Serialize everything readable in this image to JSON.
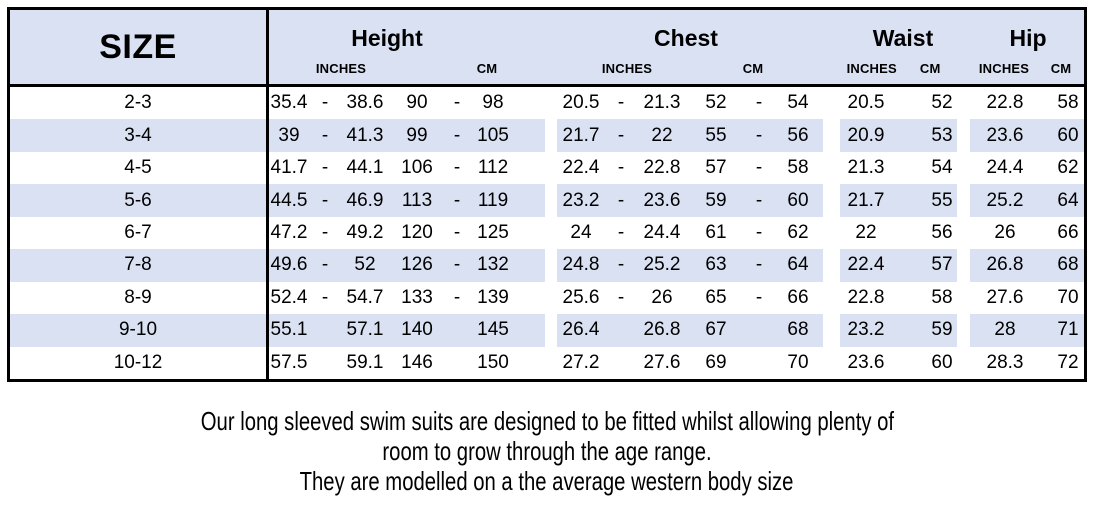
{
  "table": {
    "size_header": "SIZE",
    "groups": [
      {
        "label": "Height",
        "inches_label": "INCHES",
        "cm_label": "CM"
      },
      {
        "label": "Chest",
        "inches_label": "INCHES",
        "cm_label": "CM"
      },
      {
        "label": "Waist",
        "inches_label": "INCHES",
        "cm_label": "CM"
      },
      {
        "label": "Hip",
        "inches_label": "INCHES",
        "cm_label": "CM"
      }
    ],
    "rows": [
      {
        "size": "2-3",
        "height": [
          "35.4",
          "-",
          "38.6",
          "90",
          "-",
          "98"
        ],
        "chest": [
          "20.5",
          "-",
          "21.3",
          "52",
          "-",
          "54"
        ],
        "waist": [
          "20.5",
          "52"
        ],
        "hip": [
          "22.8",
          "58"
        ]
      },
      {
        "size": "3-4",
        "height": [
          "39",
          "-",
          "41.3",
          "99",
          "-",
          "105"
        ],
        "chest": [
          "21.7",
          "-",
          "22",
          "55",
          "-",
          "56"
        ],
        "waist": [
          "20.9",
          "53"
        ],
        "hip": [
          "23.6",
          "60"
        ]
      },
      {
        "size": "4-5",
        "height": [
          "41.7",
          "-",
          "44.1",
          "106",
          "-",
          "112"
        ],
        "chest": [
          "22.4",
          "-",
          "22.8",
          "57",
          "-",
          "58"
        ],
        "waist": [
          "21.3",
          "54"
        ],
        "hip": [
          "24.4",
          "62"
        ]
      },
      {
        "size": "5-6",
        "height": [
          "44.5",
          "-",
          "46.9",
          "113",
          "-",
          "119"
        ],
        "chest": [
          "23.2",
          "-",
          "23.6",
          "59",
          "-",
          "60"
        ],
        "waist": [
          "21.7",
          "55"
        ],
        "hip": [
          "25.2",
          "64"
        ]
      },
      {
        "size": "6-7",
        "height": [
          "47.2",
          "-",
          "49.2",
          "120",
          "-",
          "125"
        ],
        "chest": [
          "24",
          "-",
          "24.4",
          "61",
          "-",
          "62"
        ],
        "waist": [
          "22",
          "56"
        ],
        "hip": [
          "26",
          "66"
        ]
      },
      {
        "size": "7-8",
        "height": [
          "49.6",
          "-",
          "52",
          "126",
          "-",
          "132"
        ],
        "chest": [
          "24.8",
          "-",
          "25.2",
          "63",
          "-",
          "64"
        ],
        "waist": [
          "22.4",
          "57"
        ],
        "hip": [
          "26.8",
          "68"
        ]
      },
      {
        "size": "8-9",
        "height": [
          "52.4",
          "-",
          "54.7",
          "133",
          "-",
          "139"
        ],
        "chest": [
          "25.6",
          "-",
          "26",
          "65",
          "-",
          "66"
        ],
        "waist": [
          "22.8",
          "58"
        ],
        "hip": [
          "27.6",
          "70"
        ]
      },
      {
        "size": "9-10",
        "height": [
          "55.1",
          "",
          "57.1",
          "140",
          "",
          "145"
        ],
        "chest": [
          "26.4",
          "",
          "26.8",
          "67",
          "",
          "68"
        ],
        "waist": [
          "23.2",
          "59"
        ],
        "hip": [
          "28",
          "71"
        ]
      },
      {
        "size": "10-12",
        "height": [
          "57.5",
          "",
          "59.1",
          "146",
          "",
          "150"
        ],
        "chest": [
          "27.2",
          "",
          "27.6",
          "69",
          "",
          "70"
        ],
        "waist": [
          "23.6",
          "60"
        ],
        "hip": [
          "28.3",
          "72"
        ]
      }
    ]
  },
  "footer": {
    "lines": [
      "Our long sleeved swim suits are designed to be fitted whilst allowing plenty of",
      "room to grow through the age range.",
      "They are modelled on a the average western body size"
    ]
  },
  "colors": {
    "stripe": "#d9e1f2",
    "border": "#000000",
    "text": "#000000",
    "background": "#ffffff"
  },
  "chart_data": {
    "type": "table",
    "title": "Long sleeved swim suit size chart",
    "column_groups": [
      "SIZE",
      "Height",
      "Chest",
      "Waist",
      "Hip"
    ],
    "units": [
      "INCHES",
      "CM"
    ],
    "rows": [
      {
        "size": "2-3",
        "height_in": [
          35.4,
          38.6
        ],
        "height_cm": [
          90,
          98
        ],
        "chest_in": [
          20.5,
          21.3
        ],
        "chest_cm": [
          52,
          54
        ],
        "waist_in": 20.5,
        "waist_cm": 52,
        "hip_in": 22.8,
        "hip_cm": 58
      },
      {
        "size": "3-4",
        "height_in": [
          39,
          41.3
        ],
        "height_cm": [
          99,
          105
        ],
        "chest_in": [
          21.7,
          22
        ],
        "chest_cm": [
          55,
          56
        ],
        "waist_in": 20.9,
        "waist_cm": 53,
        "hip_in": 23.6,
        "hip_cm": 60
      },
      {
        "size": "4-5",
        "height_in": [
          41.7,
          44.1
        ],
        "height_cm": [
          106,
          112
        ],
        "chest_in": [
          22.4,
          22.8
        ],
        "chest_cm": [
          57,
          58
        ],
        "waist_in": 21.3,
        "waist_cm": 54,
        "hip_in": 24.4,
        "hip_cm": 62
      },
      {
        "size": "5-6",
        "height_in": [
          44.5,
          46.9
        ],
        "height_cm": [
          113,
          119
        ],
        "chest_in": [
          23.2,
          23.6
        ],
        "chest_cm": [
          59,
          60
        ],
        "waist_in": 21.7,
        "waist_cm": 55,
        "hip_in": 25.2,
        "hip_cm": 64
      },
      {
        "size": "6-7",
        "height_in": [
          47.2,
          49.2
        ],
        "height_cm": [
          120,
          125
        ],
        "chest_in": [
          24,
          24.4
        ],
        "chest_cm": [
          61,
          62
        ],
        "waist_in": 22,
        "waist_cm": 56,
        "hip_in": 26,
        "hip_cm": 66
      },
      {
        "size": "7-8",
        "height_in": [
          49.6,
          52
        ],
        "height_cm": [
          126,
          132
        ],
        "chest_in": [
          24.8,
          25.2
        ],
        "chest_cm": [
          63,
          64
        ],
        "waist_in": 22.4,
        "waist_cm": 57,
        "hip_in": 26.8,
        "hip_cm": 68
      },
      {
        "size": "8-9",
        "height_in": [
          52.4,
          54.7
        ],
        "height_cm": [
          133,
          139
        ],
        "chest_in": [
          25.6,
          26
        ],
        "chest_cm": [
          65,
          66
        ],
        "waist_in": 22.8,
        "waist_cm": 58,
        "hip_in": 27.6,
        "hip_cm": 70
      },
      {
        "size": "9-10",
        "height_in": [
          55.1,
          57.1
        ],
        "height_cm": [
          140,
          145
        ],
        "chest_in": [
          26.4,
          26.8
        ],
        "chest_cm": [
          67,
          68
        ],
        "waist_in": 23.2,
        "waist_cm": 59,
        "hip_in": 28,
        "hip_cm": 71
      },
      {
        "size": "10-12",
        "height_in": [
          57.5,
          59.1
        ],
        "height_cm": [
          146,
          150
        ],
        "chest_in": [
          27.2,
          27.6
        ],
        "chest_cm": [
          69,
          70
        ],
        "waist_in": 23.6,
        "waist_cm": 60,
        "hip_in": 28.3,
        "hip_cm": 72
      }
    ],
    "notes": [
      "Our long sleeved swim suits are designed to be fitted whilst allowing plenty of room to grow through the age range.",
      "They are modelled on a the average western body size"
    ]
  }
}
